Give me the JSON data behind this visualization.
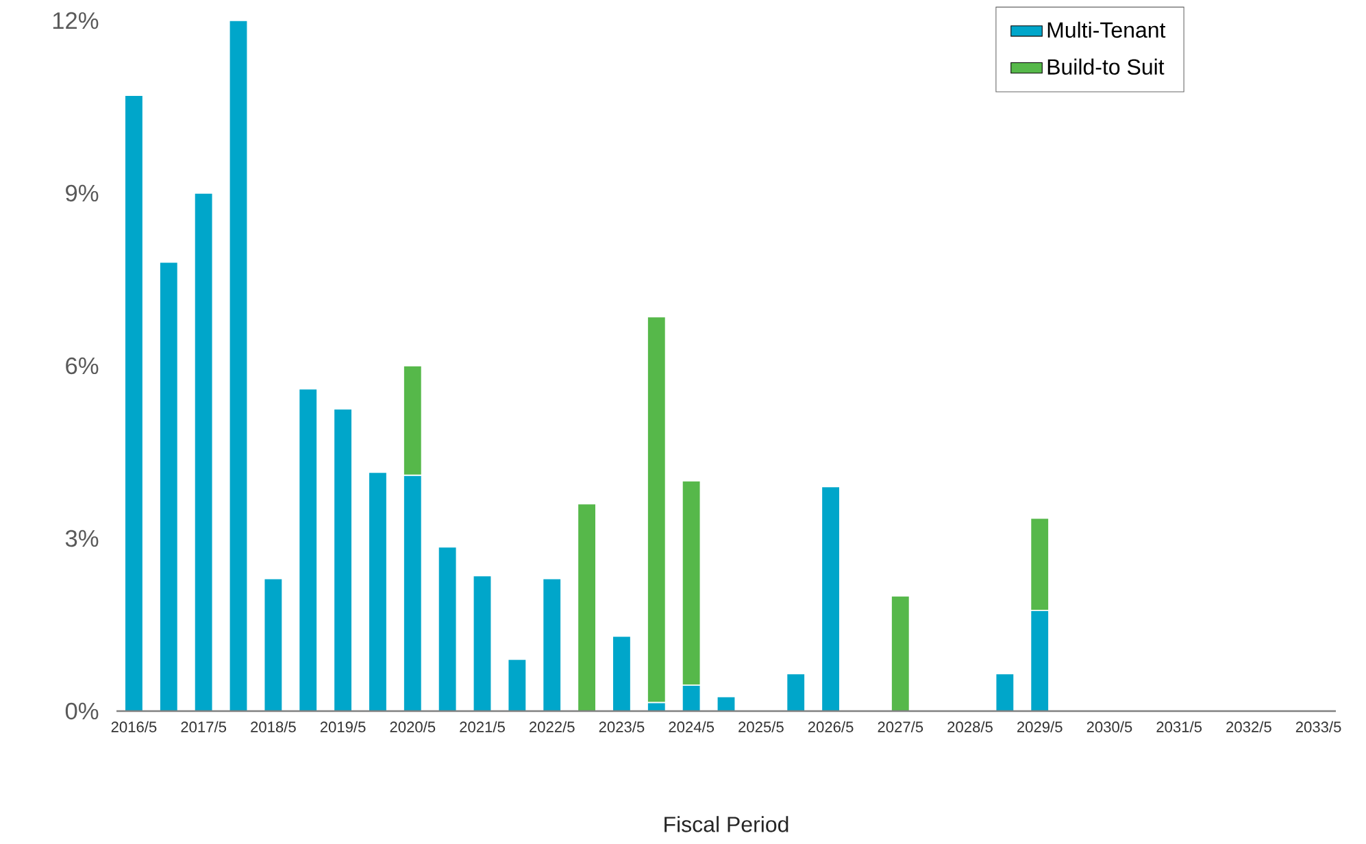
{
  "chart_data": {
    "type": "bar",
    "stacked": true,
    "xlabel": "Fiscal Period",
    "categories": [
      "2016/5",
      null,
      "2017/5",
      null,
      "2018/5",
      null,
      "2019/5",
      null,
      "2020/5",
      null,
      "2021/5",
      null,
      "2022/5",
      null,
      "2023/5",
      null,
      "2024/5",
      null,
      "2025/5",
      null,
      "2026/5",
      null,
      "2027/5",
      null,
      "2028/5",
      null,
      "2029/5",
      null,
      "2030/5",
      null,
      "2031/5",
      null,
      "2032/5",
      null,
      "2033/5"
    ],
    "series": [
      {
        "name": "Multi-Tenant",
        "color": "#00a6ca",
        "values": [
          10.7,
          7.8,
          9.0,
          12.0,
          2.3,
          5.6,
          5.25,
          4.15,
          4.1,
          2.85,
          2.35,
          0.9,
          2.3,
          null,
          1.3,
          0.15,
          0.45,
          0.25,
          null,
          0.65,
          3.9,
          null,
          null,
          null,
          null,
          0.65,
          1.75,
          null,
          null,
          null,
          null,
          null,
          null,
          null,
          null
        ]
      },
      {
        "name": "Build-to Suit",
        "color": "#56b84a",
        "values": [
          null,
          null,
          null,
          null,
          null,
          null,
          null,
          null,
          1.9,
          null,
          null,
          null,
          null,
          3.6,
          null,
          6.7,
          3.55,
          null,
          null,
          null,
          null,
          null,
          2.0,
          null,
          null,
          null,
          1.6,
          null,
          null,
          null,
          null,
          null,
          null,
          null,
          null
        ]
      }
    ],
    "ylim": [
      0,
      12
    ],
    "yticks": [
      {
        "value": 0,
        "label": "0%"
      },
      {
        "value": 3,
        "label": "3%"
      },
      {
        "value": 6,
        "label": "6%"
      },
      {
        "value": 9,
        "label": "9%"
      },
      {
        "value": 12,
        "label": "12%"
      }
    ],
    "legend": "top right"
  }
}
